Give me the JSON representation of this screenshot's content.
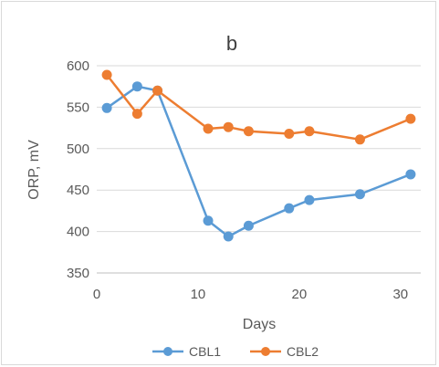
{
  "chart_data": {
    "type": "line",
    "title": "b",
    "xlabel": "Days",
    "ylabel": "ORP, mV",
    "xlim": [
      0,
      32
    ],
    "ylim": [
      350,
      600
    ],
    "xticks": [
      0,
      10,
      20,
      30
    ],
    "yticks": [
      350,
      400,
      450,
      500,
      550,
      600
    ],
    "grid": "horizontal",
    "legend": "bottom",
    "series": [
      {
        "name": "CBL1",
        "color": "#5b9bd5",
        "x": [
          1,
          4,
          6,
          11,
          13,
          15,
          19,
          21,
          26,
          31
        ],
        "values": [
          549,
          575,
          570,
          413,
          394,
          407,
          428,
          438,
          445,
          469
        ]
      },
      {
        "name": "CBL2",
        "color": "#ed7d31",
        "x": [
          1,
          4,
          6,
          11,
          13,
          15,
          19,
          21,
          26,
          31
        ],
        "values": [
          589,
          542,
          570,
          524,
          526,
          521,
          518,
          521,
          511,
          536
        ]
      }
    ]
  }
}
